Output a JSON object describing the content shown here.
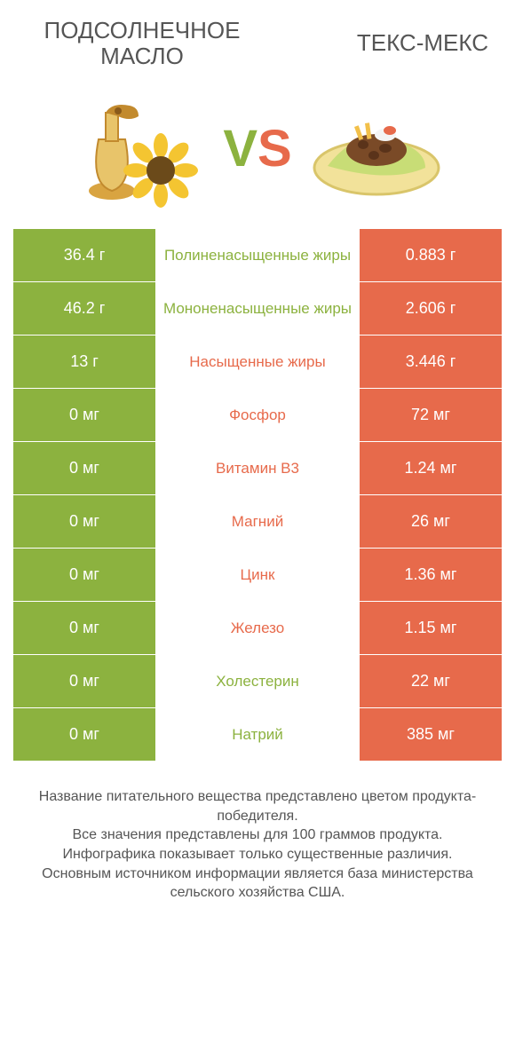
{
  "colors": {
    "green": "#8cb23f",
    "orange": "#e76a4b",
    "text": "#555555",
    "bg": "#ffffff"
  },
  "header": {
    "left_title": "ПОДСОЛНЕЧНОЕ МАСЛО",
    "right_title": "ТЕКС-МЕКС",
    "vs_v": "V",
    "vs_s": "S"
  },
  "rows": [
    {
      "left": "36.4 г",
      "label": "Полиненасыщенные жиры",
      "right": "0.883 г",
      "winner": "left"
    },
    {
      "left": "46.2 г",
      "label": "Мононенасыщенные жиры",
      "right": "2.606 г",
      "winner": "left"
    },
    {
      "left": "13 г",
      "label": "Насыщенные жиры",
      "right": "3.446 г",
      "winner": "right"
    },
    {
      "left": "0 мг",
      "label": "Фосфор",
      "right": "72 мг",
      "winner": "right"
    },
    {
      "left": "0 мг",
      "label": "Витамин B3",
      "right": "1.24 мг",
      "winner": "right"
    },
    {
      "left": "0 мг",
      "label": "Магний",
      "right": "26 мг",
      "winner": "right"
    },
    {
      "left": "0 мг",
      "label": "Цинк",
      "right": "1.36 мг",
      "winner": "right"
    },
    {
      "left": "0 мг",
      "label": "Железо",
      "right": "1.15 мг",
      "winner": "right"
    },
    {
      "left": "0 мг",
      "label": "Холестерин",
      "right": "22 мг",
      "winner": "left"
    },
    {
      "left": "0 мг",
      "label": "Натрий",
      "right": "385 мг",
      "winner": "left"
    }
  ],
  "footer": {
    "line1": "Название питательного вещества представлено цветом продукта-победителя.",
    "line2": "Все значения представлены для 100 граммов продукта.",
    "line3": "Инфографика показывает только существенные различия.",
    "line4": "Основным источником информации является база министерства сельского хозяйства США."
  }
}
